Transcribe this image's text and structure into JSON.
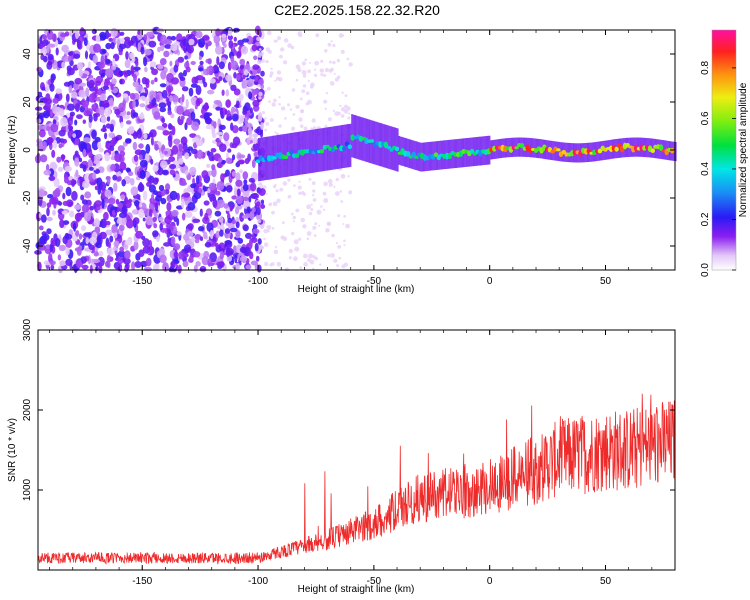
{
  "title": "C2E2.2025.158.22.32.R20",
  "colors": {
    "snr_line": "#ee2a2a",
    "axis": "#000000",
    "background": "#ffffff"
  },
  "chart_data": [
    {
      "type": "heatmap",
      "xlabel": "Height of straight line (km)",
      "ylabel": "Frequency (Hz)",
      "xlim": [
        -195,
        80
      ],
      "ylim": [
        -50,
        50
      ],
      "x_ticks": [
        -150,
        -100,
        -50,
        0,
        50
      ],
      "x_tick_labels": [
        "-150",
        "-100",
        "-50",
        "0",
        "50"
      ],
      "y_ticks": [
        -40,
        -20,
        0,
        20,
        40
      ],
      "y_tick_labels": [
        "-40",
        "-20",
        "0",
        "20",
        "40"
      ],
      "colorbar": {
        "label": "Normalized spectral amplitude",
        "range": [
          0,
          0.95
        ],
        "ticks": [
          0.0,
          0.2,
          0.4,
          0.6,
          0.8
        ],
        "tick_labels": [
          "0.0",
          "0.2",
          "0.4",
          "0.6",
          "0.8"
        ],
        "colormap": "rainbow (white-violet-blue-cyan-green-yellow-red-magenta)"
      },
      "features": {
        "noise_region_x": [
          -195,
          -100
        ],
        "signal_start_x": -100,
        "signal_center_freq": 0,
        "peak_amplitude_region_x": [
          0,
          80
        ]
      }
    },
    {
      "type": "line",
      "xlabel": "Height of straight line (km)",
      "ylabel": "SNR (10 * v/v)",
      "xlim": [
        -195,
        80
      ],
      "ylim": [
        0,
        3000
      ],
      "x_ticks": [
        -150,
        -100,
        -50,
        0,
        50
      ],
      "x_tick_labels": [
        "-150",
        "-100",
        "-50",
        "0",
        "50"
      ],
      "y_ticks": [
        1000,
        2000,
        3000
      ],
      "y_tick_labels": [
        "1000",
        "2000",
        "3000"
      ],
      "series": [
        {
          "x": [
            -195,
            -180,
            -160,
            -140,
            -120,
            -100,
            -90,
            -80,
            -70,
            -60,
            -50,
            -40,
            -30,
            -20,
            -10,
            0,
            10,
            20,
            30,
            40,
            50,
            60,
            70,
            80
          ],
          "values": [
            150,
            150,
            150,
            150,
            150,
            150,
            230,
            300,
            380,
            480,
            580,
            750,
            900,
            950,
            1000,
            1050,
            1150,
            1250,
            1400,
            1450,
            1500,
            1500,
            1560,
            1600
          ]
        }
      ]
    }
  ]
}
